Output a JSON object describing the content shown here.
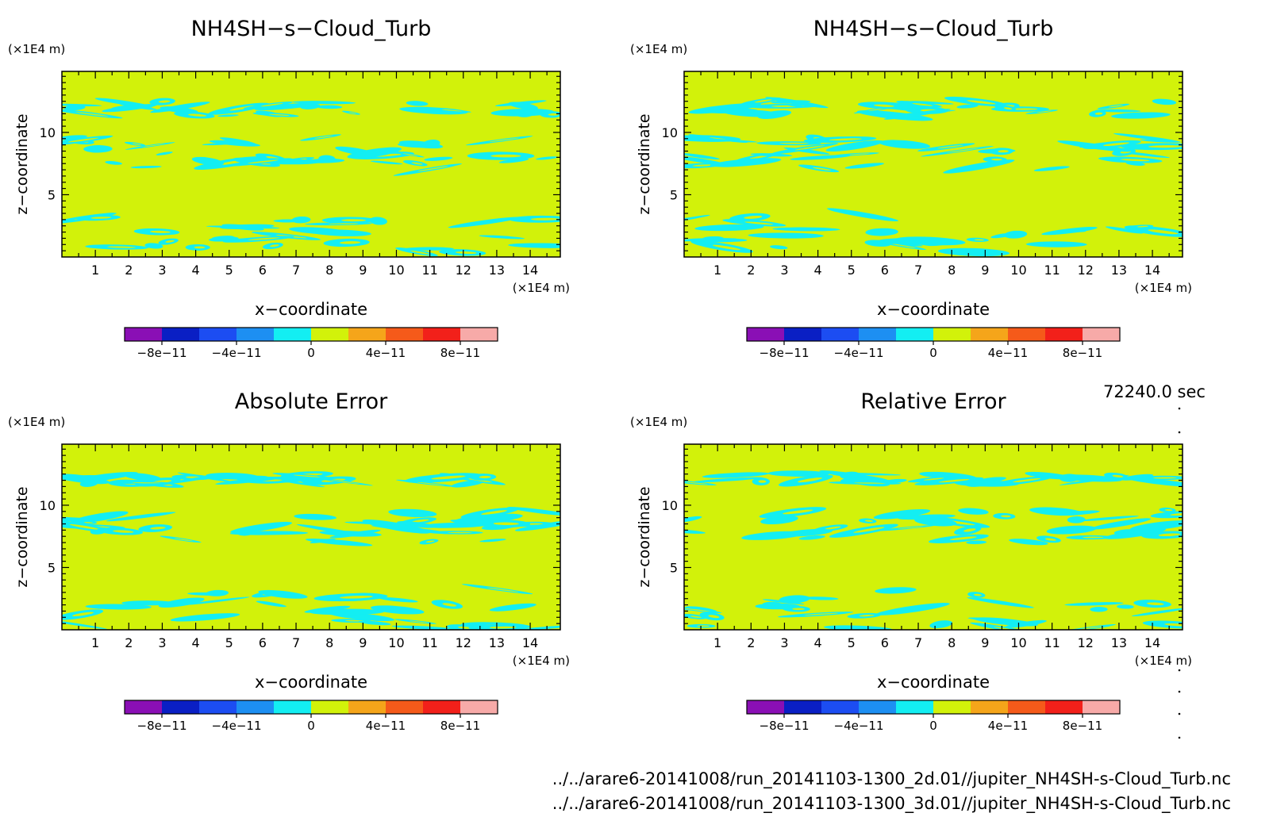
{
  "figure": {
    "time": "72240.0 sec",
    "files": [
      "../../arare6-20141008/run_20141103-1300_2d.01//jupiter_NH4SH-s-Cloud_Turb.nc",
      "../../arare6-20141008/run_20141103-1300_3d.01//jupiter_NH4SH-s-Cloud_Turb.nc"
    ]
  },
  "colorbar": {
    "colors": [
      "#8a0fb5",
      "#0a1fc4",
      "#1c4df2",
      "#1d8ff2",
      "#13eef2",
      "#d2f20a",
      "#f5a51a",
      "#f55a1a",
      "#f2201a",
      "#f7aaa8"
    ],
    "tick_values": [
      -8e-11,
      -4e-11,
      0,
      4e-11,
      8e-11
    ],
    "tick_labels": [
      "−8e−11",
      "−4e−11",
      "0",
      "4e−11",
      "8e−11"
    ]
  },
  "chart_data": [
    {
      "type": "heatmap",
      "title": "NH4SH−s−Cloud_Turb",
      "xlabel": "x−coordinate",
      "ylabel": "z−coordinate",
      "x_unit": "(×1E4 m)",
      "y_unit": "(×1E4 m)",
      "x_ticks": [
        1,
        2,
        3,
        4,
        5,
        6,
        7,
        8,
        9,
        10,
        11,
        12,
        13,
        14
      ],
      "y_ticks": [
        5,
        10
      ],
      "xlim": [
        0,
        14.9
      ],
      "ylim": [
        0,
        14.9
      ],
      "background_level": "0 to 2e-11",
      "patch_level": "-2e-11 to 0",
      "patch_bands_z": [
        [
          0.3,
          3.4
        ],
        [
          7.0,
          9.6
        ],
        [
          11.3,
          12.5
        ]
      ]
    },
    {
      "type": "heatmap",
      "title": "NH4SH−s−Cloud_Turb",
      "xlabel": "x−coordinate",
      "ylabel": "z−coordinate",
      "x_unit": "(×1E4 m)",
      "y_unit": "(×1E4 m)",
      "x_ticks": [
        1,
        2,
        3,
        4,
        5,
        6,
        7,
        8,
        9,
        10,
        11,
        12,
        13,
        14
      ],
      "y_ticks": [
        5,
        10
      ],
      "xlim": [
        0,
        14.9
      ],
      "ylim": [
        0,
        14.9
      ],
      "background_level": "0 to 2e-11",
      "patch_level": "-2e-11 to 0",
      "patch_bands_z": [
        [
          0.3,
          3.4
        ],
        [
          7.0,
          9.6
        ],
        [
          11.3,
          12.5
        ]
      ]
    },
    {
      "type": "heatmap",
      "title": "Absolute Error",
      "xlabel": "x−coordinate",
      "ylabel": "z−coordinate",
      "x_unit": "(×1E4 m)",
      "y_unit": "(×1E4 m)",
      "x_ticks": [
        1,
        2,
        3,
        4,
        5,
        6,
        7,
        8,
        9,
        10,
        11,
        12,
        13,
        14
      ],
      "y_ticks": [
        5,
        10
      ],
      "xlim": [
        0,
        14.9
      ],
      "ylim": [
        0,
        14.9
      ],
      "background_level": "0 to 2e-11",
      "patch_level": "-2e-11 to 0",
      "patch_bands_z": [
        [
          0,
          3.3
        ],
        [
          7.0,
          9.6
        ],
        [
          11.7,
          12.5
        ]
      ]
    },
    {
      "type": "heatmap",
      "title": "Relative Error",
      "xlabel": "x−coordinate",
      "ylabel": "z−coordinate",
      "x_unit": "(×1E4 m)",
      "y_unit": "(×1E4 m)",
      "x_ticks": [
        1,
        2,
        3,
        4,
        5,
        6,
        7,
        8,
        9,
        10,
        11,
        12,
        13,
        14
      ],
      "y_ticks": [
        5,
        10
      ],
      "xlim": [
        0,
        14.9
      ],
      "ylim": [
        0,
        14.9
      ],
      "background_level": "0 to 2e-11",
      "patch_level": "-2e-11 to 0",
      "patch_bands_z": [
        [
          0,
          3.3
        ],
        [
          7.0,
          9.7
        ],
        [
          11.7,
          12.6
        ]
      ]
    }
  ]
}
